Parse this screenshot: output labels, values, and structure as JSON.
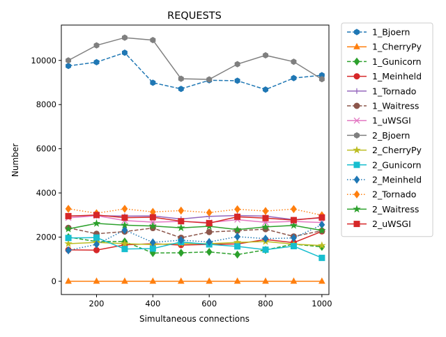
{
  "chart_data": {
    "type": "line",
    "title": "REQUESTS",
    "xlabel": "Simultaneous connections",
    "ylabel": "Number",
    "x": [
      100,
      200,
      300,
      400,
      500,
      600,
      700,
      800,
      900,
      1000
    ],
    "xlim": [
      75,
      1025
    ],
    "ylim": [
      -600,
      11600
    ],
    "xticks": [
      200,
      400,
      600,
      800,
      1000
    ],
    "yticks": [
      0,
      2000,
      4000,
      6000,
      8000,
      10000
    ],
    "grid": false,
    "legend_position": "outside-right",
    "series": [
      {
        "name": "1_Bjoern",
        "color": "#1f77b4",
        "dash": "dashed",
        "marker": "hexagon",
        "values": [
          9750,
          9920,
          10350,
          8990,
          8710,
          9100,
          9080,
          8680,
          9200,
          9330
        ]
      },
      {
        "name": "1_CherryPy",
        "color": "#ff7f0e",
        "dash": "solid",
        "marker": "triangle",
        "values": [
          0,
          0,
          0,
          0,
          0,
          0,
          0,
          0,
          0,
          0
        ]
      },
      {
        "name": "1_Gunicorn",
        "color": "#2ca02c",
        "dash": "dashed",
        "marker": "diamond",
        "values": [
          2000,
          1800,
          1800,
          1280,
          1290,
          1330,
          1210,
          1420,
          1680,
          1560
        ]
      },
      {
        "name": "1_Meinheld",
        "color": "#d62728",
        "dash": "solid",
        "marker": "circle",
        "values": [
          1420,
          1410,
          1650,
          1700,
          1640,
          1670,
          1690,
          1890,
          1750,
          2260
        ]
      },
      {
        "name": "1_Tornado",
        "color": "#9467bd",
        "dash": "solid",
        "marker": "plus",
        "values": [
          2960,
          2970,
          2950,
          2960,
          2820,
          2940,
          2980,
          2950,
          2790,
          2870
        ]
      },
      {
        "name": "1_Waitress",
        "color": "#8c564b",
        "dash": "dashed",
        "marker": "circle",
        "values": [
          2420,
          2150,
          2250,
          2410,
          1970,
          2230,
          2290,
          2360,
          2030,
          2290
        ]
      },
      {
        "name": "1_uWSGI",
        "color": "#e377c2",
        "dash": "solid",
        "marker": "x",
        "values": [
          2870,
          2970,
          2750,
          2680,
          2710,
          2660,
          2790,
          2670,
          2710,
          2660
        ]
      },
      {
        "name": "2_Bjoern",
        "color": "#7f7f7f",
        "dash": "solid",
        "marker": "hexagon",
        "values": [
          10000,
          10680,
          11030,
          10920,
          9170,
          9140,
          9830,
          10230,
          9940,
          9150
        ]
      },
      {
        "name": "2_CherryPy",
        "color": "#bcbd22",
        "dash": "solid",
        "marker": "star",
        "values": [
          1700,
          1760,
          1700,
          1660,
          1710,
          1700,
          1760,
          1800,
          1680,
          1620
        ]
      },
      {
        "name": "2_Gunicorn",
        "color": "#17becf",
        "dash": "solid",
        "marker": "square",
        "values": [
          1960,
          1980,
          1460,
          1480,
          1780,
          1670,
          1580,
          1430,
          1590,
          1060
        ]
      },
      {
        "name": "2_Meinheld",
        "color": "#1f77b4",
        "dash": "dotted",
        "marker": "diamond",
        "values": [
          1400,
          1670,
          2320,
          1760,
          1860,
          1780,
          2020,
          1930,
          1960,
          2560
        ]
      },
      {
        "name": "2_Tornado",
        "color": "#ff7f0e",
        "dash": "dotted",
        "marker": "diamond",
        "values": [
          3280,
          3080,
          3280,
          3140,
          3200,
          3110,
          3260,
          3180,
          3270,
          2990
        ]
      },
      {
        "name": "2_Waitress",
        "color": "#2ca02c",
        "dash": "solid",
        "marker": "star",
        "values": [
          2370,
          2620,
          2540,
          2500,
          2420,
          2490,
          2340,
          2460,
          2530,
          2300
        ]
      },
      {
        "name": "2_uWSGI",
        "color": "#d62728",
        "dash": "solid",
        "marker": "square",
        "values": [
          2950,
          3000,
          2880,
          2900,
          2720,
          2630,
          2920,
          2860,
          2770,
          2890
        ]
      }
    ]
  }
}
